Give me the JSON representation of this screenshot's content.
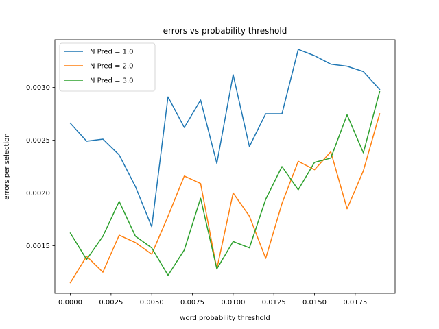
{
  "chart_data": {
    "type": "line",
    "title": "errors vs probability threshold",
    "xlabel": "word probability threshold",
    "ylabel": "errors per selection",
    "xlim": [
      -0.00095,
      0.01995
    ],
    "ylim": [
      0.001049,
      0.003451
    ],
    "xticks": [
      0.0,
      0.0025,
      0.005,
      0.0075,
      0.01,
      0.0125,
      0.015,
      0.0175
    ],
    "xtick_labels": [
      "0.0000",
      "0.0025",
      "0.0050",
      "0.0075",
      "0.0100",
      "0.0125",
      "0.0150",
      "0.0175"
    ],
    "yticks": [
      0.0015,
      0.002,
      0.0025,
      0.003
    ],
    "ytick_labels": [
      "0.0015",
      "0.0020",
      "0.0025",
      "0.0030"
    ],
    "legend_position": "top-left",
    "grid": false,
    "x": [
      0.0,
      0.001,
      0.002,
      0.003,
      0.004,
      0.005,
      0.006,
      0.007,
      0.008,
      0.009,
      0.01,
      0.011,
      0.012,
      0.013,
      0.014,
      0.015,
      0.016,
      0.017,
      0.018,
      0.019
    ],
    "series": [
      {
        "name": "N Pred = 1.0",
        "color": "#1f77b4",
        "values": [
          0.00266,
          0.00249,
          0.00251,
          0.00236,
          0.00206,
          0.00168,
          0.00291,
          0.00262,
          0.00288,
          0.00228,
          0.00312,
          0.00244,
          0.00275,
          0.00275,
          0.00336,
          0.0033,
          0.00322,
          0.0032,
          0.00315,
          0.00298
        ]
      },
      {
        "name": "N Pred = 2.0",
        "color": "#ff7f0e",
        "values": [
          0.00115,
          0.0014,
          0.00125,
          0.0016,
          0.00153,
          0.00142,
          0.00178,
          0.00216,
          0.00209,
          0.00128,
          0.002,
          0.00178,
          0.00138,
          0.0019,
          0.0023,
          0.00222,
          0.00239,
          0.00185,
          0.00221,
          0.00275
        ]
      },
      {
        "name": "N Pred = 3.0",
        "color": "#2ca02c",
        "values": [
          0.00162,
          0.00137,
          0.00159,
          0.00192,
          0.00159,
          0.00148,
          0.00122,
          0.00146,
          0.00195,
          0.00128,
          0.00154,
          0.00148,
          0.00194,
          0.00225,
          0.00203,
          0.00229,
          0.00233,
          0.00274,
          0.00238,
          0.00296
        ]
      }
    ]
  }
}
